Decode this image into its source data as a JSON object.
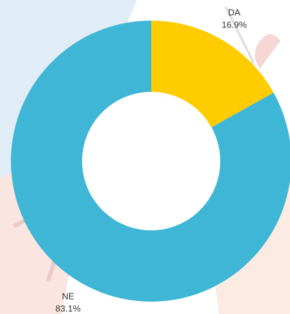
{
  "chart_data": {
    "type": "donut",
    "categories": [
      "DA",
      "NE"
    ],
    "values": [
      16.9,
      83.1
    ],
    "value_labels": [
      "16.9%",
      "83.1%"
    ],
    "colors": [
      "#ffcc00",
      "#3fb6d6"
    ]
  }
}
